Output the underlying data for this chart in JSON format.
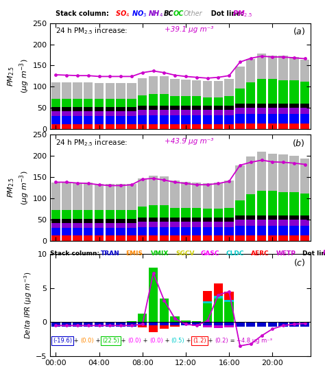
{
  "hours": [
    0,
    1,
    2,
    3,
    4,
    5,
    6,
    7,
    8,
    9,
    10,
    11,
    12,
    13,
    14,
    15,
    16,
    17,
    18,
    19,
    20,
    21,
    22,
    23
  ],
  "panel_a": {
    "SO4": [
      12,
      12,
      12,
      12,
      12,
      12,
      12,
      12,
      12,
      12,
      12,
      12,
      12,
      12,
      12,
      12,
      12,
      13,
      13,
      13,
      13,
      13,
      13,
      13
    ],
    "NO3": [
      18,
      18,
      18,
      18,
      18,
      18,
      18,
      18,
      20,
      20,
      20,
      20,
      20,
      20,
      20,
      20,
      20,
      22,
      22,
      22,
      22,
      22,
      22,
      22
    ],
    "NH4": [
      12,
      12,
      12,
      12,
      12,
      12,
      12,
      12,
      13,
      13,
      13,
      13,
      13,
      13,
      13,
      13,
      13,
      15,
      15,
      15,
      15,
      15,
      15,
      15
    ],
    "BC": [
      10,
      10,
      10,
      10,
      10,
      10,
      10,
      10,
      10,
      10,
      10,
      10,
      10,
      10,
      10,
      10,
      10,
      10,
      10,
      10,
      10,
      10,
      10,
      10
    ],
    "OC": [
      20,
      20,
      20,
      20,
      20,
      20,
      20,
      20,
      25,
      28,
      28,
      22,
      22,
      22,
      20,
      20,
      22,
      35,
      50,
      58,
      58,
      55,
      55,
      52
    ],
    "Other": [
      38,
      38,
      38,
      38,
      36,
      36,
      36,
      36,
      40,
      42,
      42,
      42,
      40,
      38,
      38,
      38,
      42,
      52,
      55,
      60,
      55,
      58,
      55,
      52
    ],
    "PM25": [
      128,
      127,
      126,
      126,
      124,
      124,
      124,
      124,
      133,
      137,
      133,
      127,
      124,
      122,
      120,
      122,
      126,
      158,
      167,
      172,
      170,
      170,
      168,
      166
    ]
  },
  "panel_b": {
    "SO4": [
      12,
      12,
      12,
      12,
      12,
      12,
      12,
      12,
      12,
      12,
      12,
      12,
      12,
      12,
      12,
      12,
      12,
      13,
      13,
      13,
      13,
      13,
      13,
      13
    ],
    "NO3": [
      18,
      18,
      18,
      18,
      18,
      18,
      18,
      18,
      20,
      20,
      20,
      20,
      20,
      20,
      20,
      20,
      20,
      22,
      22,
      22,
      22,
      22,
      22,
      22
    ],
    "NH4": [
      12,
      12,
      12,
      12,
      12,
      12,
      12,
      12,
      13,
      13,
      13,
      13,
      13,
      13,
      13,
      13,
      13,
      15,
      15,
      15,
      15,
      15,
      15,
      15
    ],
    "BC": [
      10,
      10,
      10,
      10,
      10,
      10,
      10,
      10,
      10,
      10,
      10,
      10,
      10,
      10,
      10,
      10,
      10,
      10,
      10,
      10,
      10,
      10,
      10,
      10
    ],
    "OC": [
      20,
      20,
      20,
      20,
      20,
      20,
      20,
      20,
      25,
      28,
      28,
      22,
      22,
      22,
      20,
      20,
      22,
      35,
      50,
      58,
      58,
      55,
      55,
      52
    ],
    "Other": [
      65,
      65,
      65,
      65,
      62,
      62,
      62,
      62,
      67,
      70,
      68,
      65,
      62,
      60,
      60,
      62,
      65,
      82,
      88,
      92,
      88,
      88,
      85,
      82
    ],
    "PM25": [
      138,
      138,
      136,
      135,
      132,
      130,
      130,
      132,
      145,
      147,
      143,
      138,
      135,
      132,
      132,
      135,
      140,
      178,
      185,
      190,
      186,
      185,
      183,
      180
    ]
  },
  "panel_c": {
    "TRAN": [
      -0.7,
      -0.7,
      -0.7,
      -0.7,
      -0.7,
      -0.7,
      -0.7,
      -0.7,
      -0.5,
      -0.5,
      -0.5,
      -0.5,
      -0.5,
      -0.5,
      -0.5,
      -0.5,
      -0.5,
      -0.7,
      -0.7,
      -0.7,
      -0.7,
      -0.7,
      -0.7,
      -0.7
    ],
    "EMIS": [
      0.0,
      0.0,
      0.0,
      0.0,
      0.0,
      0.0,
      0.0,
      0.0,
      0.0,
      0.0,
      0.0,
      0.0,
      0.0,
      0.0,
      0.0,
      0.0,
      0.0,
      0.0,
      0.0,
      0.0,
      0.0,
      0.0,
      0.0,
      0.0
    ],
    "VMIX": [
      0.0,
      0.0,
      0.0,
      0.0,
      0.0,
      0.0,
      0.0,
      0.1,
      1.2,
      8.0,
      3.5,
      0.8,
      0.2,
      0.1,
      2.8,
      3.5,
      3.0,
      0.0,
      0.0,
      0.0,
      0.0,
      0.0,
      0.0,
      0.0
    ],
    "SGCV": [
      0.0,
      0.0,
      0.0,
      0.0,
      0.0,
      0.0,
      0.0,
      0.0,
      0.0,
      0.0,
      0.0,
      0.0,
      0.0,
      0.0,
      0.0,
      0.0,
      0.0,
      0.0,
      0.0,
      0.0,
      0.0,
      0.0,
      0.0,
      0.0
    ],
    "GASC": [
      0.0,
      0.0,
      0.0,
      0.0,
      0.0,
      0.0,
      0.0,
      0.0,
      0.0,
      0.0,
      0.0,
      0.0,
      0.0,
      0.0,
      0.0,
      0.0,
      0.0,
      0.0,
      0.0,
      0.0,
      0.0,
      0.0,
      0.0,
      0.0
    ],
    "CLDC": [
      0.0,
      0.0,
      0.0,
      0.0,
      0.0,
      0.0,
      0.0,
      0.0,
      0.0,
      0.0,
      0.0,
      0.0,
      0.0,
      0.0,
      0.3,
      0.4,
      0.3,
      0.0,
      0.0,
      0.0,
      0.0,
      0.0,
      0.0,
      0.0
    ],
    "AERC": [
      0.0,
      0.0,
      0.0,
      0.0,
      0.0,
      0.0,
      0.0,
      0.0,
      -0.3,
      -1.0,
      -0.5,
      -0.2,
      0.0,
      0.0,
      1.5,
      1.8,
      1.2,
      0.0,
      0.0,
      0.0,
      0.0,
      0.0,
      0.0,
      0.0
    ],
    "WETP": [
      0.0,
      0.0,
      0.0,
      0.0,
      0.0,
      0.0,
      0.0,
      0.0,
      0.0,
      0.0,
      0.0,
      0.0,
      0.0,
      -0.1,
      -0.3,
      -0.4,
      -0.3,
      0.0,
      0.0,
      0.0,
      0.0,
      0.0,
      0.0,
      0.0
    ],
    "PM25": [
      -0.5,
      -0.5,
      -0.5,
      -0.5,
      -0.5,
      -0.5,
      -0.5,
      -0.5,
      -0.3,
      7.2,
      3.2,
      0.5,
      -0.3,
      -0.5,
      0.2,
      4.0,
      4.5,
      -3.5,
      -3.2,
      -2.0,
      -1.0,
      -0.5,
      -0.3,
      -0.2
    ]
  },
  "colors": {
    "SO4": "#ff0000",
    "NO3": "#0000ff",
    "NH4": "#8800cc",
    "BC": "#000000",
    "OC": "#00cc00",
    "Other": "#b8b8b8",
    "TRAN": "#0000cc",
    "EMIS": "#ff8800",
    "VMIX": "#00cc00",
    "SGCV": "#cccc00",
    "GASC": "#ff00ff",
    "CLDC": "#00cccc",
    "AERC": "#ff0000",
    "WETP": "#cc00cc",
    "PM25_line": "#cc00cc"
  },
  "ylim_ab": [
    0,
    250
  ],
  "ylim_c": [
    -5,
    10
  ],
  "yticks_ab": [
    0,
    50,
    100,
    150,
    200,
    250
  ],
  "yticks_c": [
    -5,
    0,
    5,
    10
  ],
  "xtick_positions": [
    0,
    4,
    8,
    12,
    16,
    20
  ],
  "xtick_labels": [
    "00:00",
    "04:00",
    "08:00",
    "12:00",
    "16:00",
    "20:00"
  ]
}
